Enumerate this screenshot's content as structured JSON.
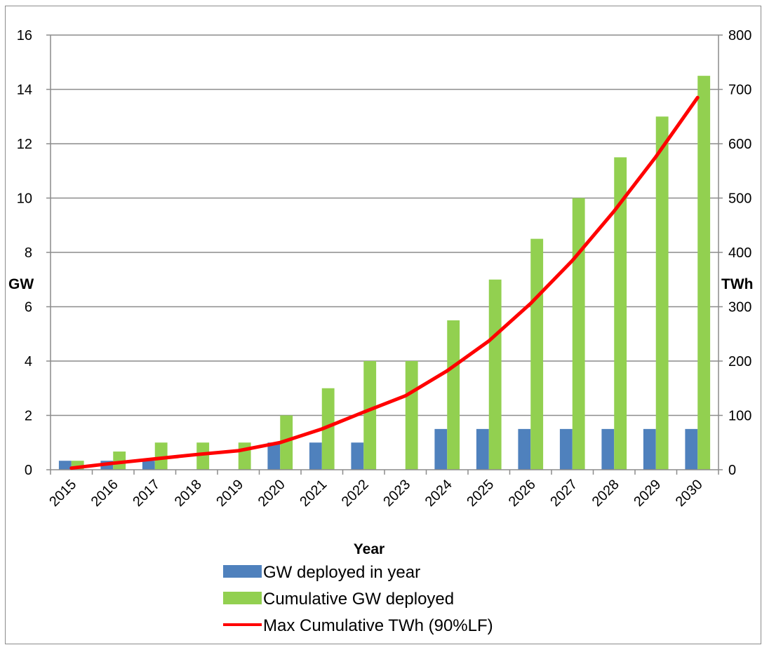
{
  "chart_data": {
    "type": "bar",
    "title": "",
    "xlabel": "Year",
    "ylabel": "GW",
    "y2label": "TWh",
    "categories": [
      "2015",
      "2016",
      "2017",
      "2018",
      "2019",
      "2020",
      "2021",
      "2022",
      "2023",
      "2024",
      "2025",
      "2026",
      "2027",
      "2028",
      "2029",
      "2030"
    ],
    "ylim": [
      0,
      16
    ],
    "y2lim": [
      0,
      800
    ],
    "yticks": [
      0,
      2,
      4,
      6,
      8,
      10,
      12,
      14,
      16
    ],
    "y2ticks": [
      0,
      100,
      200,
      300,
      400,
      500,
      600,
      700,
      800
    ],
    "y2tick_labels": [
      "0",
      "100",
      "200",
      "300",
      "400",
      "500",
      "600",
      "700",
      "800"
    ],
    "grid": true,
    "legend_position": "bottom",
    "series": [
      {
        "name": "GW deployed  in year",
        "kind": "bar",
        "axis": "left",
        "color": "#4f81bd",
        "values": [
          0.33,
          0.33,
          0.33,
          0,
          0,
          1,
          1,
          1,
          0,
          1.5,
          1.5,
          1.5,
          1.5,
          1.5,
          1.5,
          1.5
        ]
      },
      {
        "name": "Cumulative GW deployed",
        "kind": "bar",
        "axis": "left",
        "color": "#92d050",
        "values": [
          0.33,
          0.67,
          1,
          1,
          1,
          2,
          3,
          4,
          4,
          5.5,
          7,
          8.5,
          10,
          11.5,
          13,
          14.5
        ]
      },
      {
        "name": "Max Cumulative TWh (90%LF)",
        "kind": "line",
        "axis": "right",
        "color": "#ff0000",
        "values": [
          3,
          12,
          20,
          28,
          35,
          50,
          75,
          106,
          136,
          182,
          237,
          306,
          385,
          476,
          576,
          685
        ]
      }
    ]
  }
}
